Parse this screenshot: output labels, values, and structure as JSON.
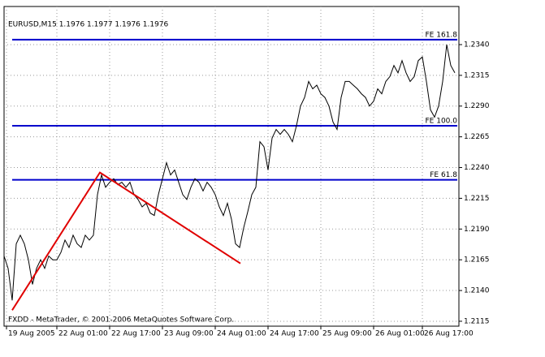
{
  "chart_data": {
    "type": "line",
    "title": "EURUSD,M15  1.1976 1.1977 1.1976 1.1976",
    "footer": "FXDD - MetaTrader, © 2001-2006 MetaQuotes Software Corp.",
    "x": [
      0,
      5,
      10,
      15,
      20,
      25,
      30,
      35,
      40,
      45,
      50,
      55,
      60,
      65,
      70,
      75,
      80,
      85,
      90,
      95,
      100,
      105,
      110,
      115,
      120,
      125,
      130,
      135,
      140,
      145,
      150,
      155,
      160,
      165,
      170,
      175,
      180,
      185,
      190,
      195,
      200,
      205,
      210,
      215,
      220,
      225,
      230,
      235,
      240,
      245,
      250,
      255,
      260,
      265,
      270,
      275,
      280,
      285,
      290,
      295,
      300,
      305,
      310,
      315,
      320,
      325,
      330,
      335,
      340,
      345,
      350,
      355,
      360,
      365,
      370,
      375,
      380,
      385,
      390,
      395,
      400,
      405,
      410,
      415,
      420,
      425,
      430,
      435,
      440,
      445,
      450,
      455,
      460,
      465,
      470,
      475,
      480,
      485,
      490,
      495,
      500,
      505,
      510,
      515,
      520,
      525,
      530,
      535,
      540,
      545,
      550,
      555
    ],
    "series": [
      {
        "name": "EURUSD",
        "color": "#000000",
        "values": [
          1.2168,
          1.2158,
          1.2132,
          1.2178,
          1.2185,
          1.2178,
          1.2165,
          1.2145,
          1.2158,
          1.2165,
          1.2158,
          1.2168,
          1.2165,
          1.2165,
          1.2171,
          1.2181,
          1.2175,
          1.2185,
          1.2178,
          1.2175,
          1.2185,
          1.2181,
          1.2185,
          1.2218,
          1.2234,
          1.2224,
          1.2228,
          1.2231,
          1.2226,
          1.2228,
          1.2224,
          1.2228,
          1.2218,
          1.2214,
          1.2208,
          1.2211,
          1.2203,
          1.2201,
          1.2218,
          1.2231,
          1.2244,
          1.2234,
          1.2238,
          1.2228,
          1.2218,
          1.2214,
          1.2224,
          1.2231,
          1.2228,
          1.2221,
          1.2228,
          1.2224,
          1.2218,
          1.2208,
          1.2201,
          1.2211,
          1.2198,
          1.2178,
          1.2175,
          1.2191,
          1.2204,
          1.2218,
          1.2224,
          1.2261,
          1.2257,
          1.2238,
          1.2264,
          1.2271,
          1.2267,
          1.2271,
          1.2267,
          1.2261,
          1.2274,
          1.229,
          1.2297,
          1.231,
          1.2304,
          1.2307,
          1.23,
          1.2297,
          1.229,
          1.2277,
          1.2271,
          1.2297,
          1.231,
          1.231,
          1.2307,
          1.2304,
          1.23,
          1.2297,
          1.229,
          1.2294,
          1.2304,
          1.23,
          1.231,
          1.2314,
          1.2323,
          1.2317,
          1.2327,
          1.2317,
          1.231,
          1.2314,
          1.2327,
          1.233,
          1.231,
          1.2287,
          1.2281,
          1.229,
          1.231,
          1.234,
          1.2323,
          1.2317
        ]
      }
    ],
    "zigzag": {
      "color": "#e00000",
      "x": [
        10,
        118,
        291
      ],
      "values": [
        1.2124,
        1.2236,
        1.2162
      ]
    },
    "levels": [
      {
        "name": "FE 161.8",
        "value": 1.2344
      },
      {
        "name": "FE 100.0",
        "value": 1.2274
      },
      {
        "name": "FE 61.8",
        "value": 1.223
      }
    ],
    "level_color": "#0000cc",
    "xlim": [
      0,
      560
    ],
    "xticks": [
      {
        "value": 3,
        "label": "19 Aug 2005"
      },
      {
        "value": 65,
        "label": "22 Aug 01:00"
      },
      {
        "value": 130,
        "label": "22 Aug 17:00"
      },
      {
        "value": 195,
        "label": "23 Aug 09:00"
      },
      {
        "value": 260,
        "label": "24 Aug 01:00"
      },
      {
        "value": 325,
        "label": "24 Aug 17:00"
      },
      {
        "value": 390,
        "label": "25 Aug 09:00"
      },
      {
        "value": 455,
        "label": "26 Aug 01:00"
      },
      {
        "value": 515,
        "label": "26 Aug 17:00"
      }
    ],
    "ylim": [
      1.2111,
      1.2371
    ],
    "yticks": [
      {
        "value": 1.234,
        "label": "1.2340"
      },
      {
        "value": 1.2315,
        "label": "1.2315"
      },
      {
        "value": 1.229,
        "label": "1.2290"
      },
      {
        "value": 1.2265,
        "label": "1.2265"
      },
      {
        "value": 1.224,
        "label": "1.2240"
      },
      {
        "value": 1.2215,
        "label": "1.2215"
      },
      {
        "value": 1.219,
        "label": "1.2190"
      },
      {
        "value": 1.2165,
        "label": "1.2165"
      },
      {
        "value": 1.214,
        "label": "1.2140"
      },
      {
        "value": 1.2115,
        "label": "1.2115"
      }
    ],
    "grid": true
  }
}
